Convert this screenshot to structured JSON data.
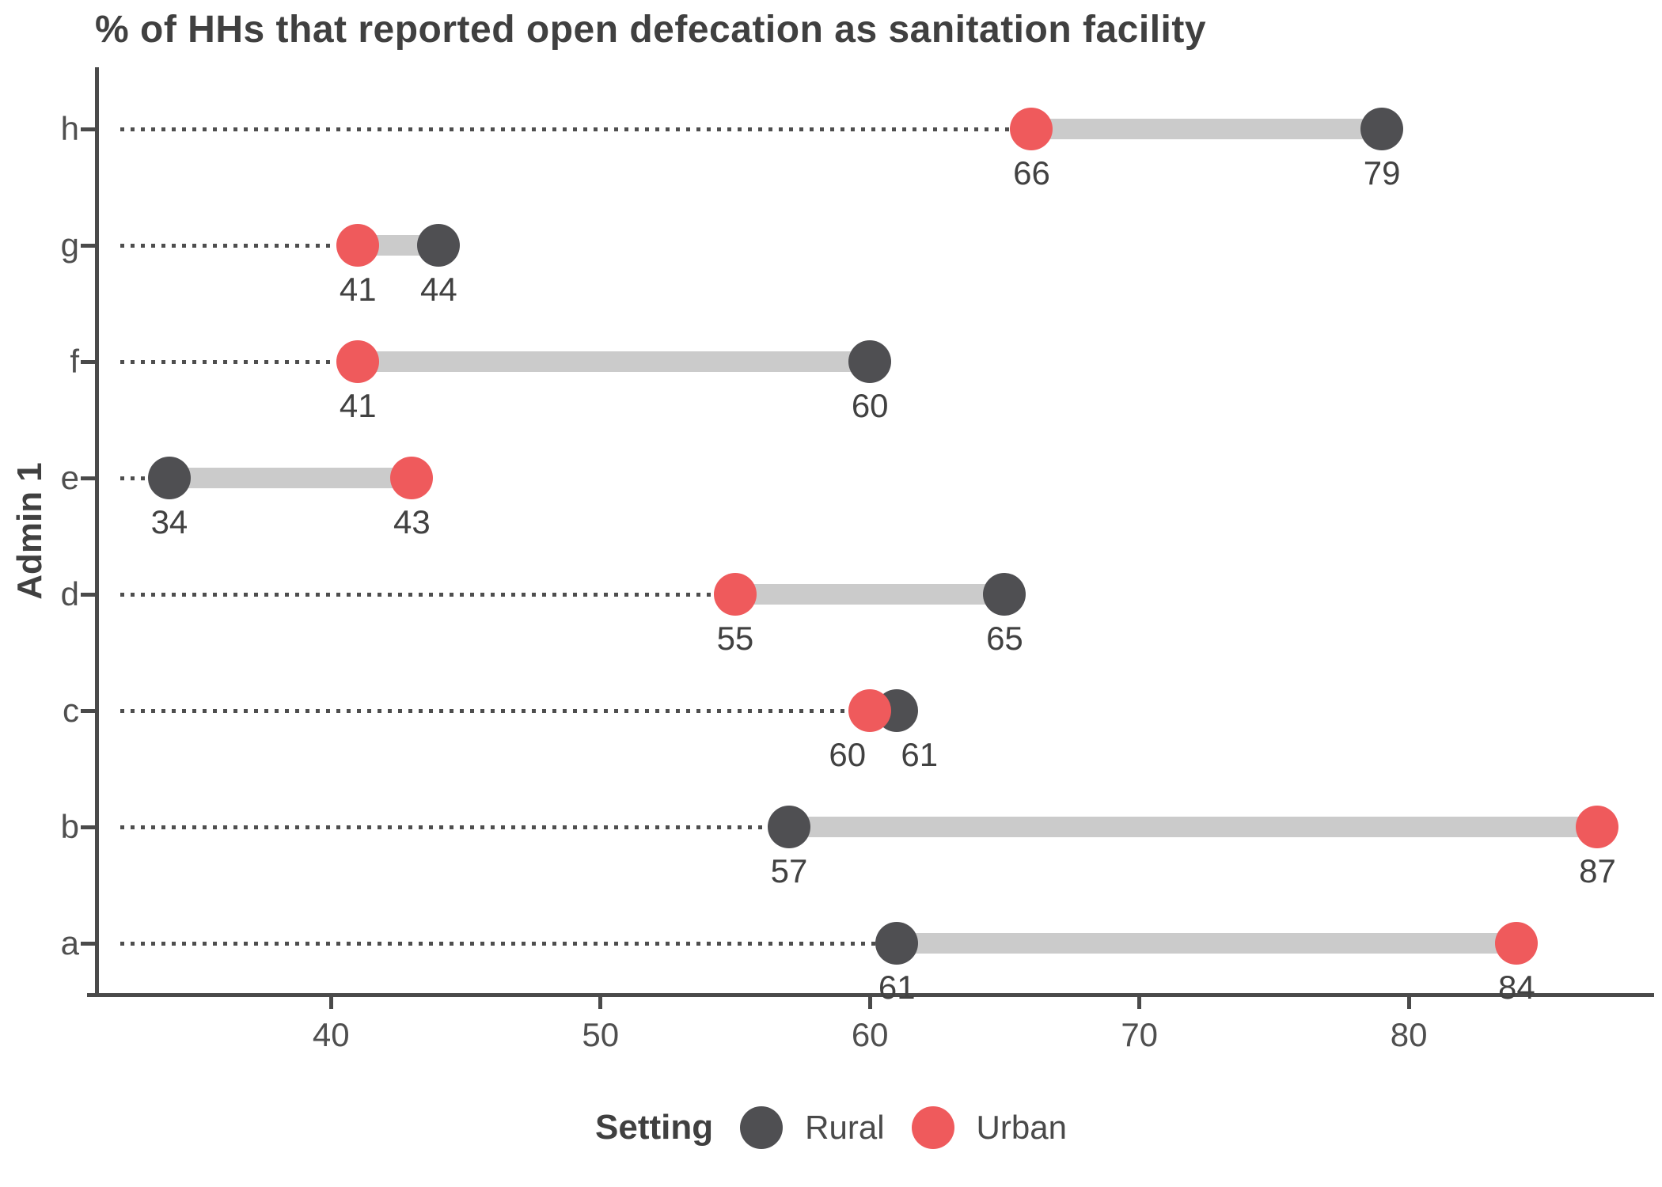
{
  "title": "% of HHs that reported open defecation as sanitation facility",
  "y_axis_label": "Admin 1",
  "legend": {
    "title": "Setting",
    "items": [
      {
        "label": "Rural",
        "color": "#4F4F52"
      },
      {
        "label": "Urban",
        "color": "#EF5A5C"
      }
    ]
  },
  "colors": {
    "rural": "#4F4F52",
    "urban": "#EF5A5C",
    "connector": "#CBCBCB",
    "leader": "#4E4E4E",
    "axis": "#4A4A4A",
    "title_text": "#404040",
    "tick_text": "#4F4F4F"
  },
  "chart_data": {
    "type": "dumbbell",
    "orientation": "horizontal",
    "title": "% of HHs that reported open defecation as sanitation facility",
    "ylabel": "Admin 1",
    "categories": [
      "h",
      "g",
      "f",
      "e",
      "d",
      "c",
      "b",
      "a"
    ],
    "series": [
      {
        "name": "Rural",
        "color": "#4F4F52",
        "values": [
          79,
          44,
          60,
          34,
          65,
          61,
          57,
          61
        ]
      },
      {
        "name": "Urban",
        "color": "#EF5A5C",
        "values": [
          66,
          41,
          41,
          43,
          55,
          60,
          87,
          84
        ]
      }
    ],
    "xticks": [
      40,
      50,
      60,
      70,
      80
    ],
    "xlim": [
      31.3,
      89.1
    ],
    "grid": false,
    "value_labels": true,
    "legend_position": "bottom",
    "legend_title": "Setting"
  }
}
